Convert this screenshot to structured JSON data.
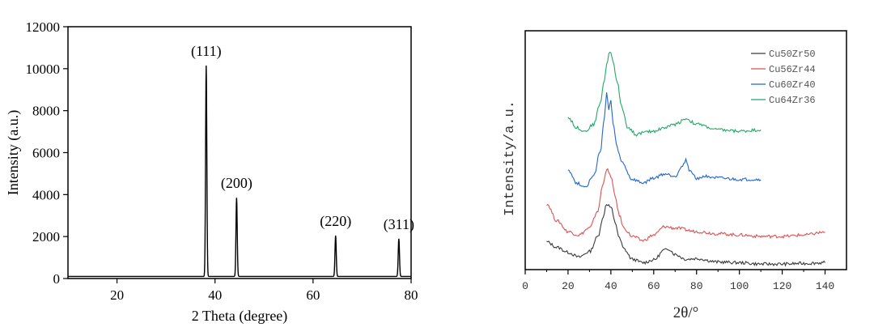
{
  "chart_data": [
    {
      "type": "line",
      "title": "",
      "xlabel": "2 Theta (degree)",
      "ylabel": "Intensity (a.u.)",
      "xlim": [
        10,
        80
      ],
      "ylim": [
        0,
        12000
      ],
      "x_ticks": [
        20,
        40,
        60,
        80
      ],
      "y_ticks": [
        0,
        2000,
        4000,
        6000,
        8000,
        10000,
        12000
      ],
      "x_tick_labels": [
        "20",
        "40",
        "60",
        "80"
      ],
      "y_tick_labels": [
        "0",
        "2000",
        "4000",
        "6000",
        "8000",
        "10000",
        "12000"
      ],
      "grid": false,
      "color": "#000000",
      "baseline": 100,
      "peaks": [
        {
          "x": 38.2,
          "y": 10150,
          "label": "(111)"
        },
        {
          "x": 44.4,
          "y": 3850,
          "label": "(200)"
        },
        {
          "x": 64.6,
          "y": 2050,
          "label": "(220)"
        },
        {
          "x": 77.5,
          "y": 1900,
          "label": "(311)"
        }
      ]
    },
    {
      "type": "line",
      "title": "",
      "xlabel": "2θ/°",
      "ylabel": "Intensity/a.u.",
      "xlim": [
        0,
        150
      ],
      "x_ticks": [
        0,
        20,
        40,
        60,
        80,
        100,
        120,
        140
      ],
      "x_tick_labels": [
        "0",
        "20",
        "40",
        "60",
        "80",
        "100",
        "120",
        "140"
      ],
      "y_ticks_shown": false,
      "grid": false,
      "legend_position": "top-right",
      "series": [
        {
          "name": "Cu50Zr50",
          "color": "#3a3a3a",
          "x": [
            10,
            15,
            20,
            25,
            30,
            34,
            36,
            38,
            40,
            42,
            44,
            46,
            50,
            55,
            60,
            65,
            67,
            70,
            75,
            80,
            90,
            100,
            110,
            120,
            130,
            140
          ],
          "y": [
            0.4,
            0.32,
            0.25,
            0.18,
            0.26,
            0.48,
            0.72,
            0.95,
            0.9,
            0.68,
            0.45,
            0.3,
            0.15,
            0.1,
            0.14,
            0.28,
            0.3,
            0.22,
            0.15,
            0.16,
            0.11,
            0.1,
            0.08,
            0.08,
            0.09,
            0.1
          ]
        },
        {
          "name": "Cu56Zr44",
          "color": "#e05050",
          "x": [
            10,
            15,
            20,
            25,
            30,
            34,
            36,
            38,
            40,
            42,
            44,
            46,
            50,
            55,
            60,
            65,
            70,
            80,
            90,
            100,
            110,
            120,
            130,
            140
          ],
          "y": [
            0.95,
            0.7,
            0.55,
            0.5,
            0.6,
            0.85,
            1.2,
            1.45,
            1.35,
            1.05,
            0.78,
            0.6,
            0.48,
            0.42,
            0.5,
            0.62,
            0.6,
            0.55,
            0.52,
            0.5,
            0.48,
            0.48,
            0.5,
            0.54
          ]
        },
        {
          "name": "Cu60Zr40",
          "color": "#2266cc",
          "x": [
            20,
            24,
            28,
            32,
            35,
            37,
            38,
            39,
            40,
            41,
            43,
            45,
            50,
            55,
            60,
            65,
            70,
            73,
            75,
            77,
            80,
            85,
            90,
            100,
            110
          ],
          "y": [
            1.45,
            1.25,
            1.2,
            1.35,
            1.7,
            2.2,
            2.55,
            2.3,
            2.45,
            2.1,
            1.75,
            1.55,
            1.3,
            1.25,
            1.32,
            1.38,
            1.35,
            1.48,
            1.58,
            1.42,
            1.32,
            1.35,
            1.32,
            1.3,
            1.3
          ]
        },
        {
          "name": "Cu64Zr36",
          "color": "#22a868",
          "x": [
            20,
            24,
            28,
            32,
            35,
            37,
            38,
            39,
            40,
            41,
            43,
            45,
            48,
            52,
            55,
            60,
            65,
            70,
            75,
            80,
            90,
            100,
            110
          ],
          "y": [
            2.2,
            2.05,
            2.0,
            2.1,
            2.4,
            2.75,
            2.95,
            3.1,
            3.15,
            3.0,
            2.7,
            2.35,
            2.05,
            1.95,
            1.98,
            2.0,
            2.05,
            2.1,
            2.18,
            2.1,
            2.02,
            2.0,
            2.02
          ]
        }
      ]
    }
  ]
}
